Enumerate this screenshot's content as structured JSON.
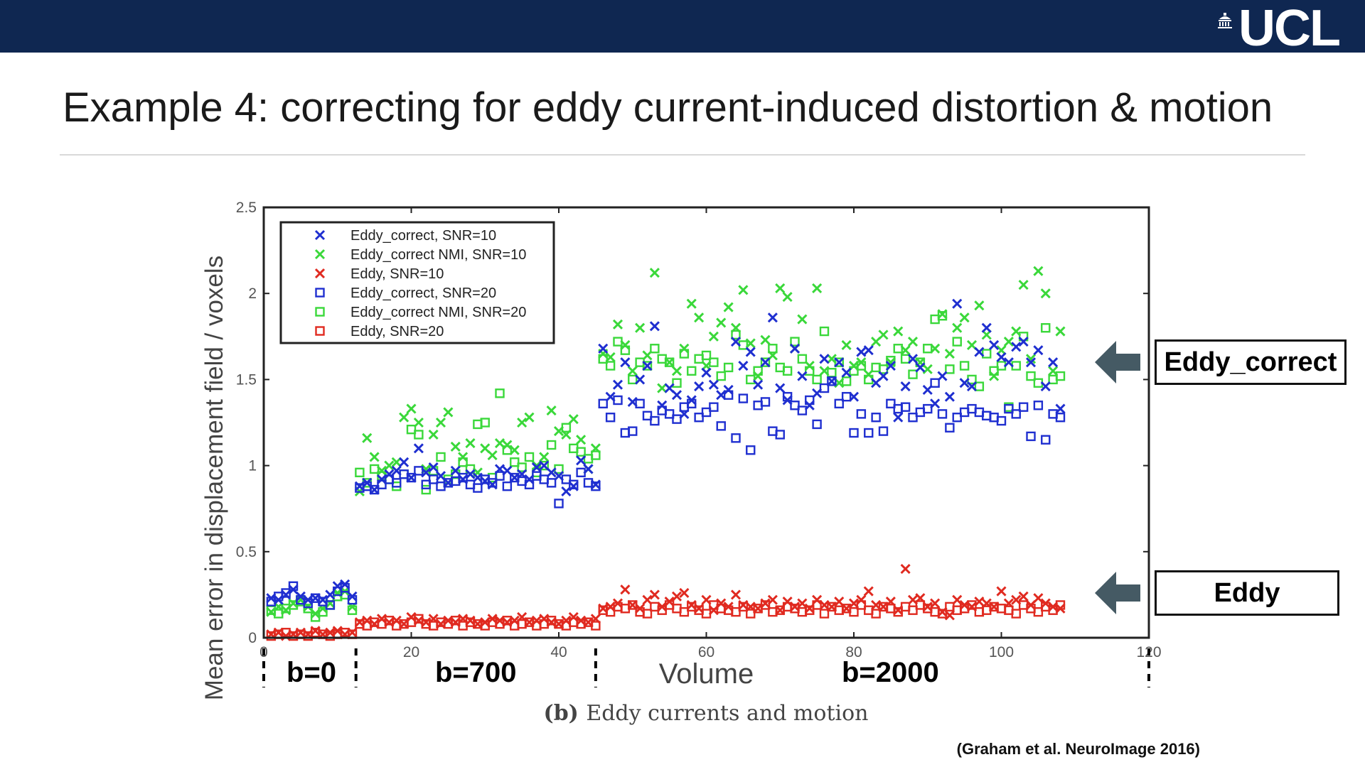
{
  "header": {
    "logo_text": "UCL",
    "bar_color": "#0f2751"
  },
  "slide": {
    "title": "Example 4: correcting for eddy current-induced distortion & motion",
    "citation": "(Graham et al. NeuroImage 2016)"
  },
  "callouts": {
    "eddy_correct": "Eddy_correct",
    "eddy": "Eddy",
    "arrow_color": "#455a64"
  },
  "shell_labels": {
    "b0": "b=0",
    "b700": "b=700",
    "b2000": "b=2000"
  },
  "chart_data": {
    "type": "scatter",
    "xlabel": "Volume",
    "ylabel": "Mean error in displacement field / voxels",
    "caption_bold": "(b)",
    "caption": "Eddy currents and motion",
    "xlim": [
      0,
      120
    ],
    "ylim": [
      0,
      2.5
    ],
    "xticks": [
      0,
      20,
      40,
      60,
      80,
      100,
      120
    ],
    "yticks": [
      0,
      0.5,
      1,
      1.5,
      2,
      2.5
    ],
    "legend_position": "top-left",
    "grid": false,
    "shell_boundaries": [
      0,
      12.5,
      45,
      120
    ],
    "series": [
      {
        "name": "Eddy_correct, SNR=10",
        "marker": "x",
        "color": "#1f2fd0",
        "values": [
          0.23,
          0.22,
          0.25,
          0.28,
          0.24,
          0.22,
          0.23,
          0.22,
          0.25,
          0.3,
          0.31,
          0.24,
          0.88,
          0.9,
          0.86,
          0.92,
          0.95,
          0.97,
          1.02,
          0.93,
          1.1,
          0.96,
          0.99,
          0.94,
          0.9,
          0.97,
          0.92,
          0.95,
          0.93,
          0.91,
          0.89,
          0.98,
          0.97,
          0.93,
          0.95,
          0.92,
          0.99,
          1.0,
          0.96,
          0.94,
          0.85,
          0.88,
          1.03,
          0.98,
          0.89,
          1.68,
          1.4,
          1.47,
          1.6,
          1.37,
          1.5,
          1.58,
          1.81,
          1.35,
          1.45,
          1.41,
          1.3,
          1.38,
          1.46,
          1.54,
          1.47,
          1.41,
          1.44,
          1.72,
          1.58,
          1.66,
          1.47,
          1.6,
          1.86,
          1.45,
          1.38,
          1.68,
          1.52,
          1.35,
          1.42,
          1.62,
          1.49,
          1.6,
          1.54,
          1.4,
          1.66,
          1.67,
          1.48,
          1.52,
          1.58,
          1.28,
          1.46,
          1.62,
          1.57,
          1.44,
          1.36,
          1.52,
          1.4,
          1.94,
          1.48,
          1.46,
          1.66,
          1.8,
          1.7,
          1.63,
          1.6,
          1.69,
          1.72,
          1.6,
          1.67,
          1.46,
          1.6,
          1.33
        ]
      },
      {
        "name": "Eddy_correct NMI, SNR=10",
        "marker": "x",
        "color": "#3ad83a",
        "values": [
          0.15,
          0.18,
          0.16,
          0.2,
          0.22,
          0.18,
          0.14,
          0.17,
          0.2,
          0.26,
          0.27,
          0.18,
          0.85,
          1.16,
          1.05,
          0.97,
          1.0,
          1.02,
          1.28,
          1.33,
          1.25,
          0.98,
          1.18,
          1.25,
          1.31,
          1.11,
          1.05,
          1.13,
          0.96,
          1.1,
          1.06,
          1.13,
          1.12,
          1.09,
          1.25,
          1.28,
          1.0,
          1.05,
          1.32,
          1.2,
          1.18,
          1.27,
          1.15,
          0.98,
          1.1,
          1.65,
          1.63,
          1.82,
          1.7,
          1.55,
          1.8,
          1.64,
          2.12,
          1.45,
          1.6,
          1.55,
          1.68,
          1.94,
          1.86,
          1.58,
          1.75,
          1.83,
          1.92,
          1.8,
          2.02,
          1.71,
          1.52,
          1.73,
          1.64,
          2.03,
          1.98,
          1.68,
          1.85,
          1.58,
          2.03,
          1.55,
          1.62,
          1.48,
          1.7,
          1.58,
          1.6,
          1.53,
          1.72,
          1.76,
          1.6,
          1.78,
          1.67,
          1.72,
          1.6,
          1.56,
          1.68,
          1.88,
          1.65,
          1.8,
          1.86,
          1.7,
          1.93,
          1.76,
          1.52,
          1.67,
          1.72,
          1.78,
          2.05,
          1.62,
          2.13,
          2.0,
          1.55,
          1.78
        ]
      },
      {
        "name": "Eddy, SNR=10",
        "marker": "x",
        "color": "#e02a20",
        "values": [
          0.02,
          0.03,
          0.01,
          0.02,
          0.03,
          0.02,
          0.04,
          0.02,
          0.03,
          0.04,
          0.02,
          0.03,
          0.09,
          0.1,
          0.08,
          0.11,
          0.09,
          0.1,
          0.08,
          0.12,
          0.1,
          0.09,
          0.11,
          0.08,
          0.1,
          0.09,
          0.11,
          0.1,
          0.08,
          0.09,
          0.11,
          0.1,
          0.09,
          0.1,
          0.12,
          0.09,
          0.1,
          0.11,
          0.09,
          0.08,
          0.1,
          0.12,
          0.1,
          0.09,
          0.11,
          0.17,
          0.18,
          0.2,
          0.28,
          0.19,
          0.17,
          0.22,
          0.25,
          0.18,
          0.21,
          0.24,
          0.26,
          0.19,
          0.17,
          0.22,
          0.16,
          0.2,
          0.18,
          0.25,
          0.19,
          0.18,
          0.17,
          0.2,
          0.22,
          0.16,
          0.21,
          0.18,
          0.2,
          0.17,
          0.22,
          0.19,
          0.18,
          0.21,
          0.17,
          0.2,
          0.22,
          0.27,
          0.19,
          0.18,
          0.21,
          0.16,
          0.4,
          0.22,
          0.23,
          0.18,
          0.2,
          0.15,
          0.13,
          0.22,
          0.19,
          0.18,
          0.21,
          0.2,
          0.18,
          0.27,
          0.2,
          0.22,
          0.24,
          0.19,
          0.23,
          0.2,
          0.18,
          0.17
        ]
      },
      {
        "name": "Eddy_correct, SNR=20",
        "marker": "square",
        "color": "#1f2fd0",
        "values": [
          0.21,
          0.24,
          0.26,
          0.3,
          0.22,
          0.2,
          0.23,
          0.21,
          0.19,
          0.27,
          0.29,
          0.22,
          0.87,
          0.88,
          0.86,
          0.89,
          0.92,
          0.9,
          0.95,
          0.93,
          0.97,
          0.89,
          0.92,
          0.88,
          0.9,
          0.91,
          0.93,
          0.89,
          0.87,
          0.92,
          0.9,
          0.94,
          0.88,
          0.93,
          0.91,
          0.89,
          0.94,
          0.92,
          0.9,
          0.78,
          0.92,
          0.89,
          0.96,
          0.9,
          0.88,
          1.36,
          1.28,
          1.38,
          1.19,
          1.2,
          1.36,
          1.29,
          1.26,
          1.32,
          1.3,
          1.27,
          1.34,
          1.36,
          1.28,
          1.31,
          1.34,
          1.23,
          1.41,
          1.16,
          1.39,
          1.09,
          1.35,
          1.37,
          1.2,
          1.18,
          1.4,
          1.35,
          1.32,
          1.38,
          1.24,
          1.45,
          1.49,
          1.36,
          1.4,
          1.19,
          1.3,
          1.19,
          1.28,
          1.2,
          1.36,
          1.33,
          1.34,
          1.28,
          1.31,
          1.33,
          1.48,
          1.3,
          1.22,
          1.28,
          1.31,
          1.33,
          1.31,
          1.29,
          1.28,
          1.26,
          1.33,
          1.3,
          1.34,
          1.17,
          1.35,
          1.15,
          1.3,
          1.28
        ]
      },
      {
        "name": "Eddy_correct NMI, SNR=20",
        "marker": "square",
        "color": "#3ad83a",
        "values": [
          0.16,
          0.14,
          0.17,
          0.19,
          0.21,
          0.17,
          0.12,
          0.15,
          0.19,
          0.24,
          0.25,
          0.16,
          0.96,
          0.9,
          0.98,
          0.94,
          0.92,
          0.88,
          0.95,
          1.21,
          1.18,
          0.86,
          0.97,
          1.05,
          0.92,
          0.95,
          1.02,
          0.98,
          1.24,
          1.25,
          0.93,
          1.42,
          1.09,
          1.02,
          0.99,
          1.05,
          0.96,
          1.0,
          1.12,
          0.98,
          1.22,
          1.1,
          1.08,
          1.04,
          1.06,
          1.62,
          1.58,
          1.72,
          1.67,
          1.5,
          1.6,
          1.58,
          1.68,
          1.62,
          1.6,
          1.48,
          1.65,
          1.55,
          1.62,
          1.64,
          1.6,
          1.52,
          1.57,
          1.76,
          1.7,
          1.5,
          1.55,
          1.6,
          1.68,
          1.57,
          1.55,
          1.72,
          1.62,
          1.55,
          1.5,
          1.78,
          1.54,
          1.6,
          1.49,
          1.55,
          1.58,
          1.5,
          1.57,
          1.56,
          1.61,
          1.68,
          1.62,
          1.53,
          1.6,
          1.68,
          1.85,
          1.87,
          1.56,
          1.72,
          1.58,
          1.5,
          1.46,
          1.65,
          1.55,
          1.58,
          1.34,
          1.58,
          1.75,
          1.52,
          1.48,
          1.8,
          1.5,
          1.52
        ]
      },
      {
        "name": "Eddy, SNR=20",
        "marker": "square",
        "color": "#e02a20",
        "values": [
          0.01,
          0.02,
          0.03,
          0.01,
          0.02,
          0.01,
          0.03,
          0.02,
          0.01,
          0.02,
          0.03,
          0.02,
          0.08,
          0.07,
          0.09,
          0.08,
          0.1,
          0.07,
          0.08,
          0.09,
          0.11,
          0.08,
          0.07,
          0.09,
          0.08,
          0.1,
          0.07,
          0.09,
          0.08,
          0.07,
          0.09,
          0.08,
          0.1,
          0.07,
          0.08,
          0.09,
          0.07,
          0.08,
          0.1,
          0.08,
          0.07,
          0.09,
          0.08,
          0.09,
          0.07,
          0.16,
          0.15,
          0.18,
          0.17,
          0.19,
          0.15,
          0.14,
          0.18,
          0.16,
          0.19,
          0.17,
          0.15,
          0.18,
          0.16,
          0.14,
          0.19,
          0.17,
          0.16,
          0.15,
          0.18,
          0.14,
          0.17,
          0.19,
          0.15,
          0.16,
          0.18,
          0.17,
          0.15,
          0.16,
          0.19,
          0.14,
          0.18,
          0.16,
          0.17,
          0.15,
          0.19,
          0.16,
          0.14,
          0.18,
          0.17,
          0.15,
          0.18,
          0.16,
          0.19,
          0.17,
          0.15,
          0.14,
          0.18,
          0.16,
          0.17,
          0.19,
          0.15,
          0.16,
          0.18,
          0.17,
          0.16,
          0.14,
          0.19,
          0.17,
          0.15,
          0.18,
          0.16,
          0.19
        ]
      }
    ]
  }
}
